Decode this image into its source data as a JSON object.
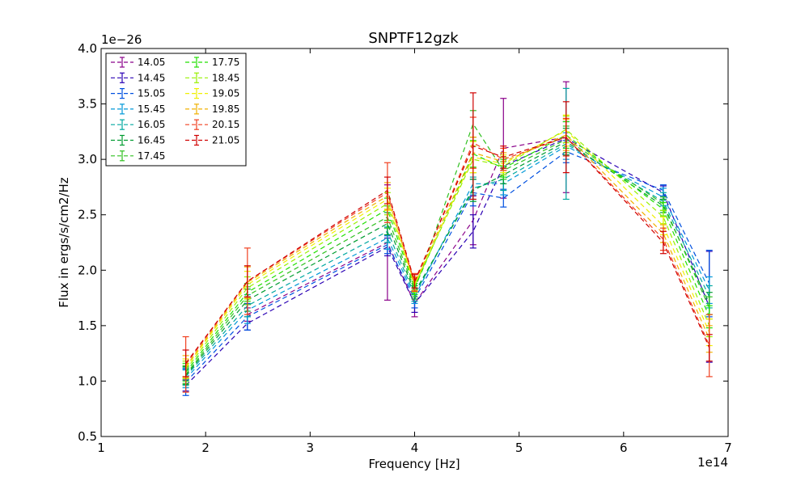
{
  "chart_data": {
    "type": "line",
    "title": "SNPTF12gzk",
    "xlabel": "Frequency [Hz]",
    "ylabel": "Flux in ergs/s/cm2/Hz",
    "x_offset_label": "1e14",
    "y_offset_label": "1e−26",
    "xlim": [
      1,
      7
    ],
    "ylim": [
      0.5,
      4.0
    ],
    "x_ticks": [
      1,
      2,
      3,
      4,
      5,
      6,
      7
    ],
    "x_tick_labels": [
      "1",
      "2",
      "3",
      "4",
      "5",
      "6",
      "7"
    ],
    "y_ticks": [
      0.5,
      1.0,
      1.5,
      2.0,
      2.5,
      3.0,
      3.5,
      4.0
    ],
    "y_tick_labels": [
      "0.5",
      "1.0",
      "1.5",
      "2.0",
      "2.5",
      "3.0",
      "3.5",
      "4.0"
    ],
    "grid": false,
    "legend_position": "top-left",
    "line_style": "dashed",
    "x": [
      1.81,
      2.4,
      3.74,
      4.0,
      4.56,
      4.85,
      5.45,
      6.38,
      6.82
    ],
    "series": [
      {
        "name": "14.05",
        "color": "#8a008a",
        "values": [
          null,
          1.6,
          2.25,
          1.7,
          2.45,
          3.1,
          3.2,
          null,
          null
        ],
        "errors": [
          null,
          0.06,
          0.52,
          0.12,
          0.22,
          0.45,
          0.5,
          null,
          null
        ]
      },
      {
        "name": "14.45",
        "color": "#2a00b4",
        "values": [
          0.96,
          1.52,
          2.21,
          1.7,
          2.35,
          2.94,
          3.19,
          2.7,
          1.67
        ],
        "errors": [
          0.05,
          0.06,
          0.08,
          0.08,
          0.15,
          0.08,
          0.15,
          0.06,
          0.5
        ]
      },
      {
        "name": "15.05",
        "color": "#0050e0",
        "values": [
          0.99,
          1.58,
          2.23,
          1.74,
          2.7,
          2.65,
          3.07,
          2.72,
          1.88
        ],
        "errors": [
          0.12,
          0.12,
          0.08,
          0.08,
          0.12,
          0.08,
          0.1,
          0.05,
          0.3
        ]
      },
      {
        "name": "15.45",
        "color": "#0098d8",
        "values": [
          1.02,
          1.64,
          2.29,
          1.76,
          2.78,
          2.78,
          3.12,
          2.66,
          1.82
        ],
        "errors": [
          0.08,
          0.12,
          0.1,
          0.06,
          0.1,
          0.1,
          0.12,
          0.08,
          0.12
        ]
      },
      {
        "name": "16.05",
        "color": "#00a8a0",
        "values": [
          1.04,
          1.68,
          2.35,
          1.78,
          2.74,
          2.82,
          3.14,
          2.62,
          1.76
        ],
        "errors": [
          0.08,
          0.1,
          0.1,
          0.06,
          0.1,
          0.1,
          0.5,
          0.08,
          0.1
        ]
      },
      {
        "name": "16.45",
        "color": "#009c30",
        "values": [
          1.05,
          1.73,
          2.42,
          1.8,
          2.72,
          2.86,
          3.16,
          2.58,
          1.7
        ],
        "errors": [
          0.08,
          0.1,
          0.1,
          0.06,
          0.1,
          0.08,
          0.12,
          0.06,
          0.1
        ]
      },
      {
        "name": "17.45",
        "color": "#30c020",
        "values": [
          1.06,
          1.77,
          2.48,
          1.82,
          3.32,
          2.9,
          3.18,
          2.6,
          1.66
        ],
        "errors": [
          0.08,
          0.08,
          0.1,
          0.06,
          0.12,
          0.08,
          0.12,
          0.06,
          0.1
        ]
      },
      {
        "name": "17.75",
        "color": "#20e000",
        "values": [
          1.08,
          1.8,
          2.55,
          1.84,
          3.05,
          2.92,
          3.22,
          2.55,
          1.58
        ],
        "errors": [
          0.08,
          0.08,
          0.1,
          0.06,
          0.12,
          0.08,
          0.12,
          0.06,
          0.1
        ]
      },
      {
        "name": "18.45",
        "color": "#98f000",
        "values": [
          1.1,
          1.84,
          2.6,
          1.86,
          3.0,
          2.94,
          3.27,
          2.48,
          1.5
        ],
        "errors": [
          0.08,
          0.1,
          0.1,
          0.06,
          0.12,
          0.08,
          0.12,
          0.06,
          0.1
        ]
      },
      {
        "name": "19.05",
        "color": "#f0f000",
        "values": [
          1.12,
          1.87,
          2.64,
          1.87,
          3.02,
          2.96,
          3.26,
          2.4,
          1.44
        ],
        "errors": [
          0.08,
          0.12,
          0.1,
          0.06,
          0.14,
          0.08,
          0.14,
          0.08,
          0.12
        ]
      },
      {
        "name": "19.85",
        "color": "#f0b000",
        "values": [
          1.13,
          1.89,
          2.67,
          1.88,
          3.06,
          2.98,
          3.22,
          2.33,
          1.38
        ],
        "errors": [
          0.1,
          0.14,
          0.12,
          0.06,
          0.14,
          0.08,
          0.14,
          0.08,
          0.12
        ]
      },
      {
        "name": "20.15",
        "color": "#f04020",
        "values": [
          1.15,
          1.9,
          2.7,
          1.89,
          3.15,
          3.0,
          3.2,
          2.28,
          1.32
        ],
        "errors": [
          0.25,
          0.3,
          0.27,
          0.08,
          0.23,
          0.1,
          0.17,
          0.1,
          0.28
        ]
      },
      {
        "name": "21.05",
        "color": "#d00000",
        "values": [
          1.16,
          1.9,
          2.72,
          1.9,
          3.12,
          3.02,
          3.2,
          2.25,
          1.3
        ],
        "errors": [
          0.12,
          0.14,
          0.12,
          0.06,
          0.48,
          0.1,
          0.32,
          0.1,
          0.12
        ]
      }
    ]
  }
}
